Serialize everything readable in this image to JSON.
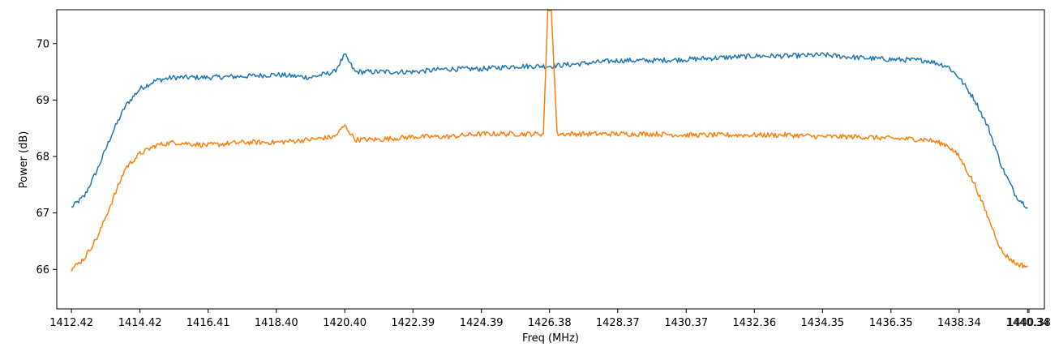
{
  "chart_data": {
    "type": "line",
    "title": "",
    "xlabel": "Freq (MHz)",
    "ylabel": "Power (dB)",
    "xlim": [
      1411.99,
      1440.83
    ],
    "ylim": [
      65.3,
      70.6
    ],
    "grid": false,
    "legend": "none",
    "x_ticks": [
      1412.42,
      1414.42,
      1416.41,
      1418.4,
      1420.4,
      1422.39,
      1424.39,
      1426.38,
      1428.37,
      1430.37,
      1432.36,
      1434.35,
      1436.35,
      1438.34,
      1440.34,
      1440.38
    ],
    "x_tick_labels": [
      "1412.42",
      "1414.42",
      "1416.41",
      "1418.40",
      "1420.40",
      "1422.39",
      "1424.39",
      "1426.38",
      "1428.37",
      "1430.37",
      "1432.36",
      "1434.35",
      "1436.35",
      "1438.34",
      "1440.34",
      "1440.38"
    ],
    "y_ticks": [
      66,
      67,
      68,
      69,
      70
    ],
    "y_tick_labels": [
      "66",
      "67",
      "68",
      "69",
      "70"
    ],
    "series": [
      {
        "color": "#1f77b4",
        "x": [
          1412.42,
          1412.8,
          1413.2,
          1413.6,
          1414.0,
          1414.42,
          1414.9,
          1415.4,
          1416.41,
          1417.4,
          1418.4,
          1419.4,
          1420.1,
          1420.4,
          1420.7,
          1421.4,
          1422.39,
          1423.4,
          1424.39,
          1425.4,
          1426.38,
          1427.4,
          1428.37,
          1429.4,
          1430.37,
          1431.4,
          1432.36,
          1433.4,
          1434.35,
          1435.4,
          1436.35,
          1437.4,
          1438.0,
          1438.34,
          1438.8,
          1439.2,
          1439.6,
          1440.0,
          1440.34
        ],
        "y": [
          67.1,
          67.3,
          67.8,
          68.4,
          68.9,
          69.2,
          69.35,
          69.4,
          69.4,
          69.42,
          69.45,
          69.4,
          69.5,
          69.8,
          69.5,
          69.5,
          69.5,
          69.55,
          69.55,
          69.6,
          69.6,
          69.65,
          69.7,
          69.7,
          69.72,
          69.75,
          69.78,
          69.78,
          69.8,
          69.75,
          69.72,
          69.7,
          69.6,
          69.4,
          69.0,
          68.5,
          67.8,
          67.3,
          67.1
        ]
      },
      {
        "color": "#ff7f0e",
        "x": [
          1412.42,
          1412.8,
          1413.2,
          1413.6,
          1414.0,
          1414.42,
          1414.9,
          1415.4,
          1416.41,
          1417.4,
          1418.4,
          1419.4,
          1420.1,
          1420.4,
          1420.7,
          1421.4,
          1422.39,
          1423.4,
          1424.39,
          1425.4,
          1426.2,
          1426.33,
          1426.38,
          1426.43,
          1426.6,
          1427.4,
          1428.37,
          1429.4,
          1430.37,
          1431.4,
          1432.36,
          1433.4,
          1434.35,
          1435.4,
          1436.35,
          1437.4,
          1438.0,
          1438.34,
          1438.8,
          1439.2,
          1439.6,
          1440.0,
          1440.34
        ],
        "y": [
          66.0,
          66.2,
          66.6,
          67.2,
          67.8,
          68.05,
          68.2,
          68.25,
          68.2,
          68.25,
          68.25,
          68.3,
          68.35,
          68.55,
          68.3,
          68.3,
          68.35,
          68.35,
          68.4,
          68.4,
          68.4,
          70.6,
          70.6,
          70.6,
          68.4,
          68.4,
          68.4,
          68.4,
          68.38,
          68.38,
          68.38,
          68.38,
          68.35,
          68.35,
          68.32,
          68.3,
          68.2,
          68.0,
          67.5,
          66.9,
          66.3,
          66.1,
          66.05
        ]
      }
    ]
  }
}
